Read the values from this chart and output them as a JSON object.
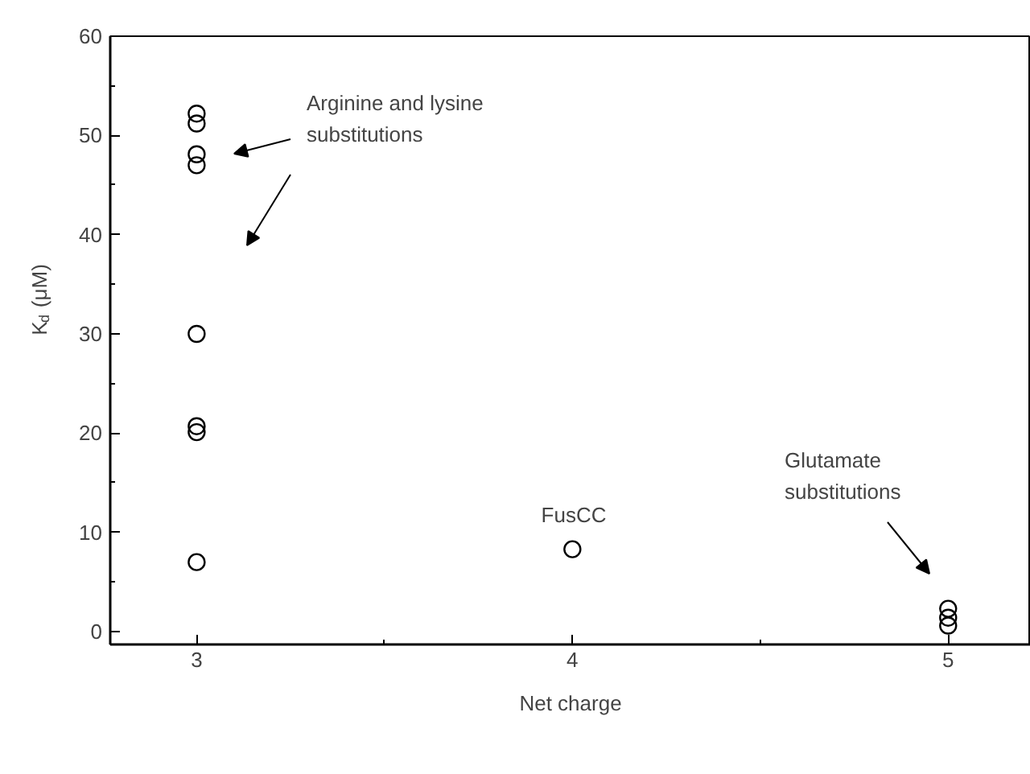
{
  "chart_data": {
    "type": "scatter",
    "xlabel": "Net charge",
    "ylabel": "K$_{d}$ (μM)",
    "x": [
      3,
      3,
      3,
      3,
      3,
      3,
      3,
      3,
      4,
      5,
      5,
      5
    ],
    "series": [
      {
        "color": "#000000",
        "values": [
          52.2,
          51.2,
          48.1,
          47,
          30,
          20.7,
          20.1,
          7,
          8.3,
          2.3,
          1.4,
          0.6
        ]
      }
    ],
    "xlim": [
      2.77,
      5.22
    ],
    "ylim": [
      -1.3,
      60
    ],
    "xticks": [
      3,
      4,
      5
    ],
    "yticks": [
      0,
      10,
      20,
      30,
      40,
      50,
      60
    ],
    "marker": "circle",
    "grid": false,
    "annotations": [
      "Arginine and lysine substitutions",
      "FusCC",
      "Glutamate substitutions"
    ]
  }
}
